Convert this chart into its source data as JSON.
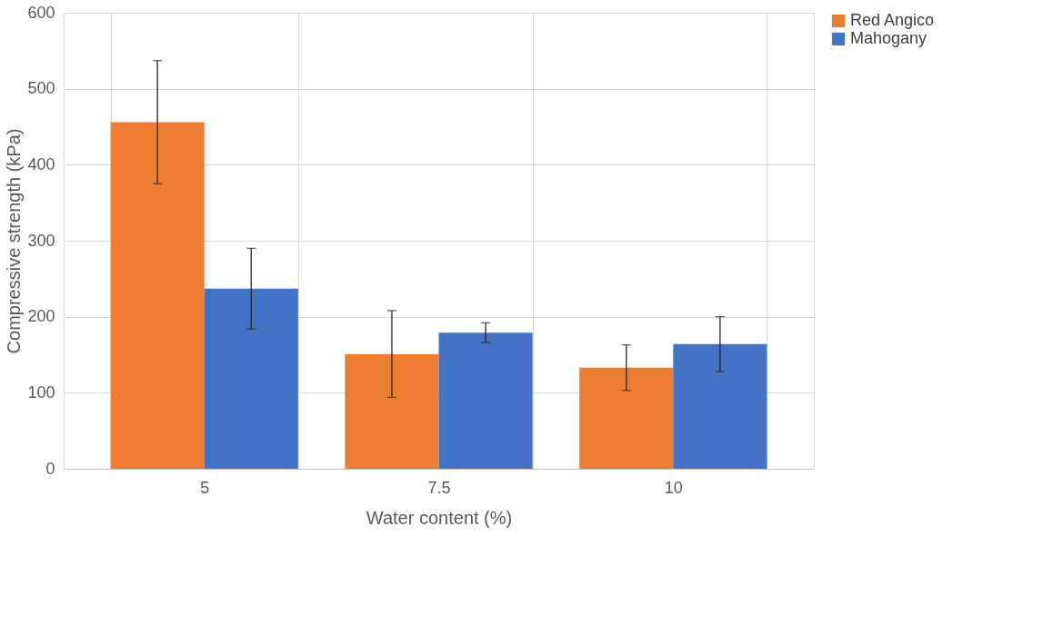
{
  "chart_data": {
    "type": "bar",
    "xlabel": "Water content (%)",
    "ylabel": "Compressive strength (kPa)",
    "categories": [
      "5",
      "7.5",
      "10"
    ],
    "series": [
      {
        "name": "Red Angico",
        "color": "#ed7d31",
        "values": [
          456,
          151,
          133
        ],
        "errors": [
          81,
          57,
          30
        ]
      },
      {
        "name": "Mahogany",
        "color": "#4472c4",
        "values": [
          237,
          179,
          164
        ],
        "errors": [
          53,
          13,
          36
        ]
      }
    ],
    "ylim": [
      0,
      600
    ],
    "yticks": [
      0,
      100,
      200,
      300,
      400,
      500,
      600
    ],
    "grid": true,
    "legend": "right"
  }
}
